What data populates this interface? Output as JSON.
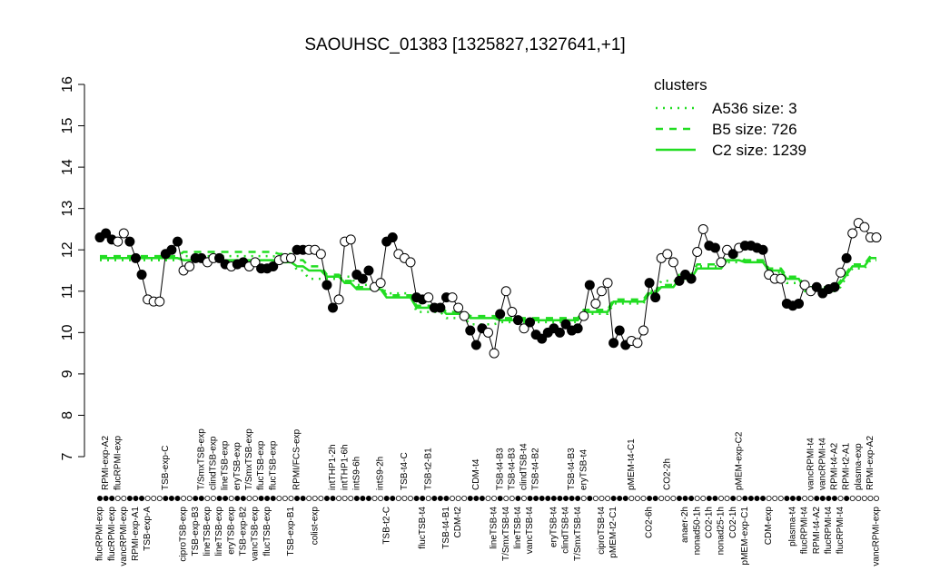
{
  "chart_data": {
    "type": "line",
    "title": "SAOUHSC_01383 [1325827,1327641,+1]",
    "ylim": [
      7,
      16
    ],
    "yticks": [
      7,
      8,
      9,
      10,
      11,
      12,
      13,
      14,
      15,
      16
    ],
    "color": "black",
    "categories": [
      "flucRPMI-exp",
      "RPMI-exp-A2",
      "flucRPMI-exp",
      "flucRPMI-exp",
      "vancRPMI-exp",
      null,
      "RPMI-exp-A1",
      null,
      "TSB-exp-A",
      null,
      null,
      "TSB-exp-C",
      null,
      null,
      "ciproTSB-exp",
      null,
      "TSB-exp-B3",
      "T/SmxTSB-exp",
      "lineTSB-exp",
      "clindTSB-exp",
      "lineTSB-exp",
      "lineTSB-exp",
      "eryTSB-exp",
      "eryTSB-exp",
      "TSB-exp-B2",
      "T/SmxTSB-exp",
      "vancTSB-exp",
      "flucTSB-exp",
      "flucTSB-exp",
      "flucTSB-exp",
      null,
      null,
      "TSB-exp-B1",
      "RPMI/FCS-exp",
      null,
      null,
      "colist-exp",
      null,
      null,
      "intTHP1-2h",
      null,
      "intTHP1-6h",
      null,
      "intS9-6h",
      null,
      null,
      null,
      "intS9-2h",
      "TSB-t2-C",
      null,
      null,
      "TSB-t4-C",
      null,
      null,
      "flucTSB-t4",
      "TSB-t2-B1",
      null,
      null,
      "TSB-t4-B1",
      null,
      "CDM-t2",
      null,
      null,
      "CDM-t4",
      null,
      null,
      "lineTSB-t4",
      "TSB-t4-B3",
      "T/SmxTSB-t4",
      "TSB-t4-B3",
      "lineTSB-t4",
      "clindTSB-t4",
      "vancTSB-t4",
      "TSB-t4-B2",
      null,
      null,
      "eryTSB-t4",
      null,
      "clindTSB-t4",
      "TSB-t4-B3",
      "T/SmxTSB-t4",
      "eryTSB-t4",
      null,
      null,
      "ciproTSB-t4",
      null,
      "pMEM-t2-C1",
      null,
      null,
      "pMEM-t4-C1",
      null,
      null,
      "CO2-6h",
      null,
      null,
      "CO2-2h",
      null,
      null,
      "anaer-2h",
      null,
      "nonad50-1h",
      null,
      "CO2-1h",
      null,
      "nonad25-1h",
      null,
      "CO2-1h",
      "pMEM-exp-C2",
      "pMEM-exp-C1",
      null,
      null,
      null,
      "CDM-exp",
      null,
      null,
      null,
      "plasma-t4",
      null,
      "flucRPMI-t4",
      "vancRPMI-t4",
      "RPMI-t4-A2",
      "vancRPMI-t4",
      "flucRPMI-t4",
      "RPMI-t4-A2",
      "flucRPMI-t4",
      "RPMI-t2-A1",
      null,
      "plasma-exp",
      null,
      "RPMI-exp-A2",
      "vancRPMI-exp"
    ],
    "values": [
      12.3,
      12.4,
      12.25,
      12.2,
      12.4,
      12.2,
      11.8,
      11.4,
      10.8,
      10.75,
      10.75,
      11.9,
      12.0,
      12.2,
      11.5,
      11.6,
      11.8,
      11.8,
      11.7,
      11.8,
      11.8,
      11.65,
      11.6,
      11.65,
      11.7,
      11.6,
      11.7,
      11.55,
      11.55,
      11.6,
      11.75,
      11.8,
      11.8,
      12.0,
      12.0,
      12.0,
      12.0,
      11.9,
      11.15,
      10.6,
      10.8,
      12.2,
      12.25,
      11.4,
      11.3,
      11.5,
      11.1,
      11.2,
      12.2,
      12.3,
      11.9,
      11.8,
      11.7,
      10.85,
      10.8,
      10.85,
      10.6,
      10.6,
      10.85,
      10.85,
      10.6,
      10.4,
      10.05,
      9.7,
      10.1,
      10.0,
      9.5,
      10.45,
      11.0,
      10.5,
      10.3,
      10.1,
      10.25,
      9.95,
      9.85,
      10.0,
      10.1,
      10.0,
      10.2,
      10.05,
      10.1,
      10.4,
      11.15,
      10.7,
      11.0,
      11.2,
      9.75,
      10.05,
      9.7,
      9.8,
      9.75,
      10.05,
      11.2,
      10.85,
      11.8,
      11.9,
      11.7,
      11.25,
      11.4,
      11.3,
      11.95,
      12.5,
      12.1,
      12.05,
      11.7,
      12.0,
      11.9,
      12.05,
      12.1,
      12.1,
      12.05,
      12.0,
      11.4,
      11.3,
      11.3,
      10.7,
      10.65,
      10.7,
      11.15,
      11.0,
      11.1,
      10.95,
      11.05,
      11.1,
      11.45,
      11.8,
      12.4,
      12.65,
      12.55,
      12.3,
      12.3
    ],
    "marker_fill": [
      "black",
      "black",
      "black",
      "white",
      "white",
      "black",
      "black",
      "black",
      "white",
      "white",
      "white",
      "black",
      "black",
      "black",
      "white",
      "white",
      "black",
      "black",
      "white",
      "white",
      "black",
      "black",
      "white",
      "black",
      "black",
      "white",
      "white",
      "black",
      "black",
      "black",
      "white",
      "white",
      "white",
      "black",
      "black",
      "white",
      "white",
      "white",
      "black",
      "black",
      "white",
      "white",
      "white",
      "black",
      "black",
      "black",
      "white",
      "white",
      "black",
      "black",
      "white",
      "white",
      "white",
      "black",
      "black",
      "white",
      "black",
      "black",
      "black",
      "white",
      "white",
      "white",
      "black",
      "black",
      "black",
      "white",
      "white",
      "black",
      "white",
      "white",
      "black",
      "white",
      "black",
      "black",
      "black",
      "black",
      "black",
      "black",
      "black",
      "black",
      "black",
      "white",
      "black",
      "white",
      "white",
      "white",
      "black",
      "black",
      "black",
      "white",
      "white",
      "white",
      "black",
      "black",
      "white",
      "white",
      "white",
      "black",
      "black",
      "black",
      "white",
      "white",
      "black",
      "black",
      "white",
      "white",
      "black",
      "white",
      "black",
      "black",
      "black",
      "black",
      "white",
      "white",
      "white",
      "black",
      "black",
      "black",
      "white",
      "white",
      "black",
      "black",
      "black",
      "black",
      "white",
      "black",
      "white",
      "white",
      "white",
      "white",
      "white"
    ],
    "legend_title": "clusters",
    "legend_color": "#22dd22",
    "series": [
      {
        "name": "A536 size: 3",
        "color": "#22dd22",
        "linestyle": "dotted",
        "values": [
          11.75,
          11.75,
          11.75,
          11.75,
          11.75,
          11.75,
          11.75,
          11.75,
          11.75,
          11.75,
          11.75,
          11.75,
          11.75,
          11.75,
          11.85,
          11.85,
          11.85,
          11.85,
          11.85,
          11.85,
          11.85,
          11.85,
          11.85,
          11.85,
          11.85,
          11.85,
          11.85,
          11.85,
          11.85,
          11.85,
          11.8,
          11.8,
          11.8,
          11.5,
          11.5,
          11.3,
          11.3,
          11.3,
          11.3,
          11.3,
          11.3,
          11.35,
          11.35,
          11.15,
          11.15,
          11.15,
          11.15,
          11.15,
          10.95,
          10.95,
          10.95,
          10.95,
          10.95,
          10.5,
          10.5,
          10.5,
          10.5,
          10.5,
          10.35,
          10.35,
          10.35,
          10.35,
          10.2,
          10.2,
          10.2,
          10.2,
          10.2,
          10.25,
          10.25,
          10.25,
          10.25,
          10.25,
          10.25,
          10.25,
          10.25,
          10.25,
          10.25,
          10.25,
          10.25,
          10.25,
          10.25,
          10.45,
          10.45,
          10.45,
          10.45,
          10.45,
          10.7,
          10.7,
          10.7,
          10.7,
          10.7,
          10.7,
          11.0,
          11.0,
          11.25,
          11.25,
          11.25,
          11.25,
          11.25,
          11.25,
          11.6,
          11.6,
          11.6,
          11.6,
          11.6,
          11.7,
          11.7,
          11.7,
          11.75,
          11.75,
          11.75,
          11.75,
          11.45,
          11.45,
          11.45,
          11.2,
          11.2,
          11.2,
          11.0,
          11.0,
          11.0,
          11.0,
          11.0,
          11.0,
          11.1,
          11.35,
          11.55,
          11.55,
          11.55,
          11.75,
          11.75
        ]
      },
      {
        "name": "B5 size: 726",
        "color": "#22dd22",
        "linestyle": "dashed",
        "values": [
          11.85,
          11.85,
          11.85,
          11.85,
          11.85,
          11.85,
          11.85,
          11.85,
          11.85,
          11.85,
          11.85,
          11.85,
          11.85,
          11.85,
          11.95,
          11.95,
          11.95,
          11.95,
          11.95,
          11.95,
          11.95,
          11.95,
          11.95,
          11.95,
          11.95,
          11.95,
          11.95,
          11.95,
          11.95,
          11.95,
          11.9,
          11.9,
          11.9,
          11.75,
          11.75,
          11.6,
          11.6,
          11.6,
          11.4,
          11.4,
          11.4,
          11.25,
          11.25,
          11.1,
          11.1,
          11.1,
          11.1,
          11.1,
          10.9,
          10.9,
          10.9,
          10.9,
          10.9,
          10.65,
          10.65,
          10.65,
          10.65,
          10.65,
          10.5,
          10.5,
          10.5,
          10.5,
          10.4,
          10.4,
          10.4,
          10.4,
          10.4,
          10.35,
          10.35,
          10.35,
          10.35,
          10.35,
          10.35,
          10.35,
          10.35,
          10.35,
          10.35,
          10.35,
          10.35,
          10.35,
          10.35,
          10.55,
          10.55,
          10.55,
          10.55,
          10.55,
          10.8,
          10.8,
          10.8,
          10.8,
          10.8,
          10.8,
          11.0,
          11.0,
          11.15,
          11.15,
          11.15,
          11.4,
          11.4,
          11.4,
          11.65,
          11.65,
          11.65,
          11.65,
          11.65,
          11.85,
          11.85,
          11.85,
          11.75,
          11.75,
          11.75,
          11.75,
          11.55,
          11.55,
          11.55,
          11.35,
          11.35,
          11.35,
          11.1,
          11.1,
          11.1,
          11.1,
          11.1,
          11.1,
          11.25,
          11.45,
          11.65,
          11.65,
          11.65,
          11.85,
          11.85
        ]
      },
      {
        "name": "C2 size: 1239",
        "color": "#22dd22",
        "linestyle": "solid",
        "values": [
          11.8,
          11.8,
          11.8,
          11.8,
          11.8,
          11.8,
          11.8,
          11.8,
          11.8,
          11.8,
          11.8,
          11.8,
          11.8,
          11.8,
          11.75,
          11.75,
          11.75,
          11.75,
          11.75,
          11.75,
          11.75,
          11.75,
          11.75,
          11.75,
          11.75,
          11.75,
          11.75,
          11.75,
          11.75,
          11.75,
          11.7,
          11.7,
          11.7,
          11.6,
          11.6,
          11.5,
          11.5,
          11.5,
          11.35,
          11.35,
          11.35,
          11.2,
          11.2,
          11.05,
          11.05,
          11.05,
          11.05,
          11.05,
          10.85,
          10.85,
          10.85,
          10.85,
          10.85,
          10.6,
          10.6,
          10.6,
          10.6,
          10.6,
          10.45,
          10.45,
          10.45,
          10.45,
          10.35,
          10.35,
          10.35,
          10.35,
          10.35,
          10.3,
          10.3,
          10.3,
          10.3,
          10.3,
          10.3,
          10.3,
          10.3,
          10.3,
          10.3,
          10.3,
          10.3,
          10.3,
          10.3,
          10.5,
          10.5,
          10.5,
          10.5,
          10.5,
          10.75,
          10.75,
          10.75,
          10.75,
          10.75,
          10.75,
          10.95,
          10.95,
          11.1,
          11.1,
          11.1,
          11.3,
          11.3,
          11.3,
          11.55,
          11.55,
          11.55,
          11.55,
          11.55,
          11.75,
          11.75,
          11.75,
          11.7,
          11.7,
          11.7,
          11.7,
          11.5,
          11.5,
          11.5,
          11.3,
          11.3,
          11.3,
          11.05,
          11.05,
          11.05,
          11.05,
          11.05,
          11.05,
          11.2,
          11.4,
          11.6,
          11.6,
          11.6,
          11.8,
          11.8
        ]
      }
    ]
  }
}
